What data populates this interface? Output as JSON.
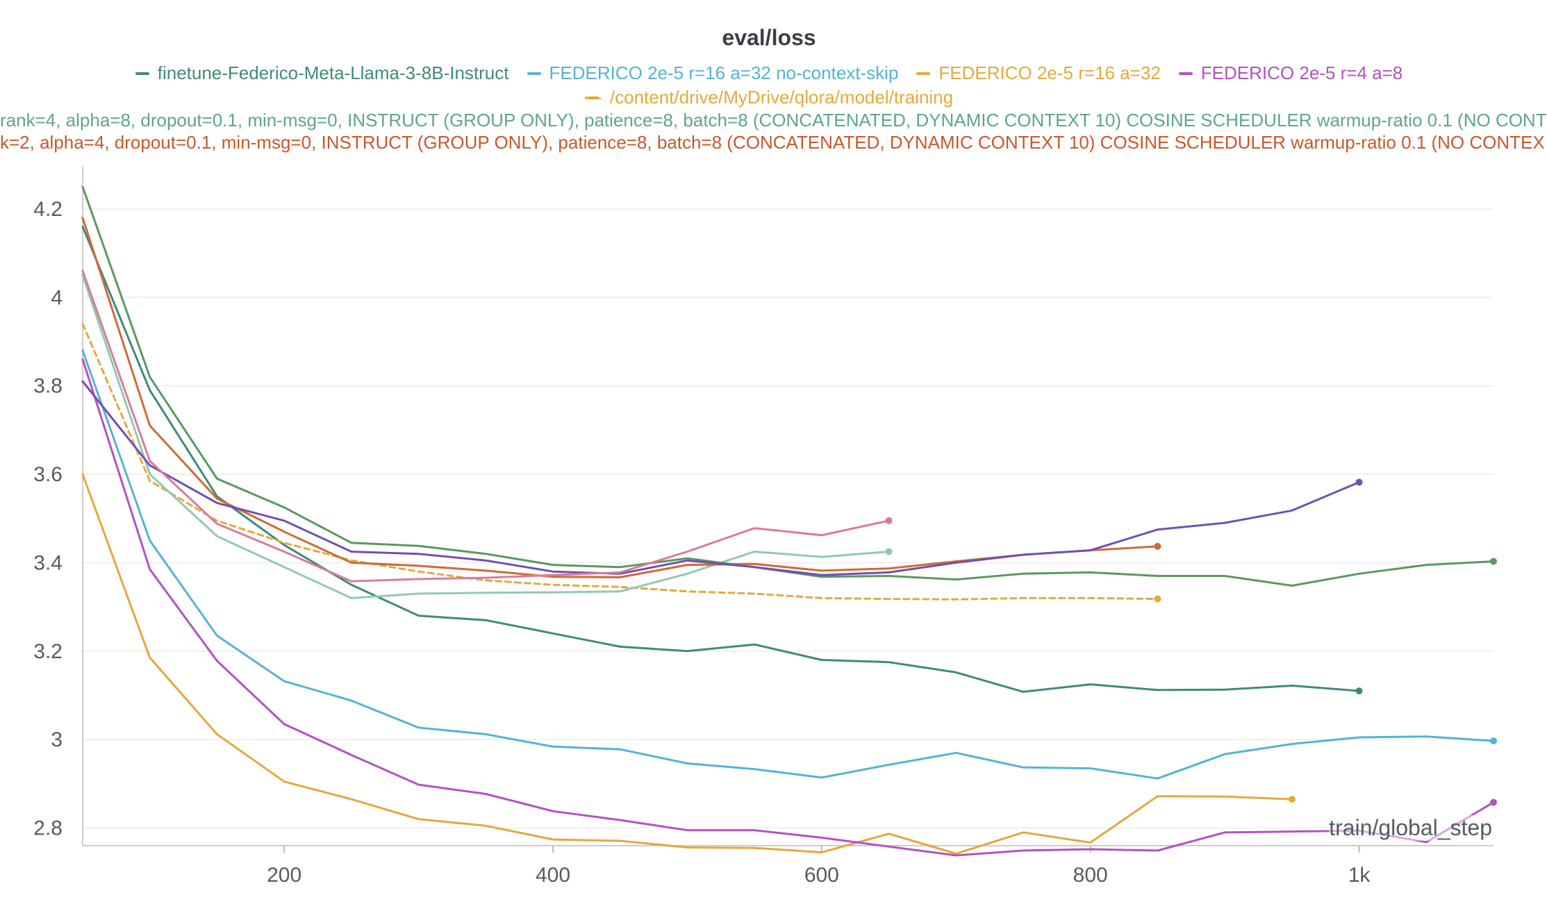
{
  "chart_data": {
    "type": "line",
    "title": "eval/loss",
    "xlabel": "train/global_step",
    "ylabel": "",
    "xlim": [
      50,
      1100
    ],
    "ylim": [
      2.76,
      4.28
    ],
    "x_ticks": [
      200,
      400,
      600,
      800,
      1000
    ],
    "x_tick_labels": [
      "200",
      "400",
      "600",
      "800",
      "1k"
    ],
    "y_ticks": [
      2.8,
      3,
      3.2,
      3.4,
      3.6,
      3.8,
      4,
      4.2
    ],
    "y_tick_labels": [
      "2.8",
      "3",
      "3.2",
      "3.4",
      "3.6",
      "3.8",
      "4",
      "4.2"
    ],
    "grid": true,
    "legend_position": "top",
    "legend": {
      "row1": [
        {
          "label": "finetune-Federico-Meta-Llama-3-8B-Instruct",
          "color": "#3f8a7c",
          "style": "solid"
        },
        {
          "label": "FEDERICO 2e-5 r=16 a=32 no-context-skip",
          "color": "#55b3d3",
          "style": "solid"
        },
        {
          "label": "FEDERICO 2e-5 r=16 a=32",
          "color": "#e4a93a",
          "style": "solid"
        },
        {
          "label": "FEDERICO 2e-5 r=4 a=8",
          "color": "#b252c1",
          "style": "solid"
        }
      ],
      "row2": [
        {
          "label": "/content/drive/MyDrive/qlora/model/training",
          "color": "#e4a93a",
          "style": "dashed"
        }
      ],
      "row3": {
        "label": "rank=4, alpha=8, dropout=0.1, min-msg=0, INSTRUCT (GROUP ONLY), patience=8, batch=8 (CONCATENATED, DYNAMIC CONTEXT 10) COSINE SCHEDULER warmup-ratio 0.1 (NO CONT",
        "color": "#5ea58c"
      },
      "row4": {
        "label": "k=2, alpha=4, dropout=0.1, min-msg=0, INSTRUCT (GROUP ONLY), patience=8, batch=8 (CONCATENATED, DYNAMIC CONTEXT 10) COSINE SCHEDULER warmup-ratio 0.1 (NO CONTEX",
        "color": "#c9572a"
      }
    },
    "series": [
      {
        "name": "finetune-Federico-Meta-Llama-3-8B-Instruct",
        "color": "#3f8a7c",
        "style": "solid",
        "end_marker": true,
        "x": [
          50,
          100,
          150,
          200,
          250,
          300,
          350,
          400,
          450,
          500,
          550,
          600,
          650,
          700,
          750,
          800,
          850,
          900,
          950,
          1000
        ],
        "y": [
          4.16,
          3.79,
          3.55,
          3.44,
          3.35,
          3.28,
          3.27,
          3.24,
          3.21,
          3.2,
          3.215,
          3.18,
          3.175,
          3.152,
          3.108,
          3.125,
          3.112,
          3.113,
          3.122,
          3.11
        ]
      },
      {
        "name": "FEDERICO 2e-5 r=16 a=32 no-context-skip",
        "color": "#55b3d3",
        "style": "solid",
        "end_marker": true,
        "x": [
          50,
          100,
          150,
          200,
          250,
          300,
          350,
          400,
          450,
          500,
          550,
          600,
          650,
          700,
          750,
          800,
          850,
          900,
          950,
          1000,
          1050,
          1100
        ],
        "y": [
          3.88,
          3.45,
          3.235,
          3.132,
          3.088,
          3.027,
          3.012,
          2.984,
          2.978,
          2.946,
          2.933,
          2.914,
          2.943,
          2.97,
          2.937,
          2.935,
          2.912,
          2.967,
          2.99,
          3.005,
          3.007,
          2.997
        ]
      },
      {
        "name": "FEDERICO 2e-5 r=16 a=32",
        "color": "#e4a93a",
        "style": "solid",
        "end_marker": true,
        "x": [
          50,
          100,
          150,
          200,
          250,
          300,
          350,
          400,
          450,
          500,
          550,
          600,
          650,
          700,
          750,
          800,
          850,
          900,
          950
        ],
        "y": [
          3.6,
          3.185,
          3.012,
          2.905,
          2.865,
          2.82,
          2.805,
          2.774,
          2.771,
          2.756,
          2.755,
          2.745,
          2.787,
          2.742,
          2.79,
          2.767,
          2.872,
          2.871,
          2.865
        ]
      },
      {
        "name": "FEDERICO 2e-5 r=4 a=8",
        "color": "#b252c1",
        "style": "solid",
        "end_marker": true,
        "x": [
          50,
          100,
          150,
          200,
          250,
          300,
          350,
          400,
          450,
          500,
          550,
          600,
          650,
          700,
          750,
          800,
          850,
          900,
          950,
          1000,
          1050,
          1100
        ],
        "y": [
          3.86,
          3.385,
          3.178,
          3.035,
          2.965,
          2.898,
          2.877,
          2.838,
          2.818,
          2.795,
          2.795,
          2.778,
          2.758,
          2.738,
          2.749,
          2.752,
          2.749,
          2.79,
          2.792,
          2.794,
          2.768,
          2.858
        ]
      },
      {
        "name": "/content/drive/MyDrive/qlora/model/training",
        "color": "#e4a93a",
        "style": "dashed",
        "end_marker": true,
        "x": [
          50,
          100,
          150,
          200,
          250,
          300,
          350,
          400,
          450,
          500,
          550,
          600,
          650,
          700,
          750,
          800,
          850
        ],
        "y": [
          3.94,
          3.585,
          3.495,
          3.445,
          3.405,
          3.38,
          3.36,
          3.35,
          3.345,
          3.335,
          3.33,
          3.32,
          3.318,
          3.317,
          3.32,
          3.32,
          3.318
        ]
      },
      {
        "name": "rank=4, alpha=8, dropout=0.1, min-msg=0, INSTRUCT (GROUP ONLY), patience=8, batch=8 (CONCATENATED, DYNAMIC CONTEXT 10) COSINE SCHEDULER warmup-ratio 0.1 (NO CONT",
        "color": "#8fcab0",
        "style": "solid",
        "end_marker": true,
        "x": [
          50,
          100,
          150,
          200,
          250,
          300,
          350,
          400,
          450,
          500,
          550,
          600,
          650
        ],
        "y": [
          4.05,
          3.6,
          3.46,
          3.39,
          3.32,
          3.33,
          3.332,
          3.333,
          3.335,
          3.375,
          3.425,
          3.413,
          3.425
        ]
      },
      {
        "name": "k=2, alpha=4, dropout=0.1, min-msg=0, INSTRUCT (GROUP ONLY), patience=8, batch=8 (CONCATENATED, DYNAMIC CONTEXT 10) COSINE SCHEDULER warmup-ratio 0.1 (NO CONTEX",
        "color": "#cf6a35",
        "style": "solid",
        "end_marker": true,
        "x": [
          50,
          100,
          150,
          200,
          250,
          300,
          350,
          400,
          450,
          500,
          550,
          600,
          650,
          700,
          750,
          800,
          850
        ],
        "y": [
          4.18,
          3.71,
          3.545,
          3.47,
          3.4,
          3.393,
          3.382,
          3.368,
          3.367,
          3.395,
          3.397,
          3.382,
          3.387,
          3.403,
          3.418,
          3.428,
          3.437
        ]
      },
      {
        "color": "#5a9860",
        "style": "solid",
        "end_marker": true,
        "x": [
          50,
          100,
          150,
          200,
          250,
          300,
          350,
          400,
          450,
          500,
          550,
          600,
          650,
          700,
          750,
          800,
          850,
          900,
          950,
          1000,
          1050,
          1100
        ],
        "y": [
          4.25,
          3.82,
          3.59,
          3.525,
          3.445,
          3.438,
          3.42,
          3.395,
          3.39,
          3.41,
          3.39,
          3.368,
          3.37,
          3.362,
          3.375,
          3.378,
          3.37,
          3.37,
          3.348,
          3.375,
          3.395,
          3.403
        ]
      },
      {
        "color": "#7050b0",
        "style": "solid",
        "end_marker": true,
        "x": [
          50,
          100,
          150,
          200,
          250,
          300,
          350,
          400,
          450,
          500,
          550,
          600,
          650,
          700,
          750,
          800,
          850,
          900,
          950,
          1000
        ],
        "y": [
          3.81,
          3.62,
          3.535,
          3.495,
          3.425,
          3.42,
          3.405,
          3.38,
          3.375,
          3.405,
          3.39,
          3.372,
          3.378,
          3.4,
          3.418,
          3.428,
          3.475,
          3.49,
          3.518,
          3.582
        ]
      },
      {
        "color": "#d97c98",
        "style": "solid",
        "end_marker": true,
        "x": [
          50,
          100,
          150,
          200,
          250,
          300,
          350,
          400,
          450,
          500,
          550,
          600,
          650
        ],
        "y": [
          4.06,
          3.63,
          3.488,
          3.425,
          3.358,
          3.363,
          3.366,
          3.372,
          3.378,
          3.425,
          3.478,
          3.462,
          3.495
        ]
      }
    ]
  }
}
